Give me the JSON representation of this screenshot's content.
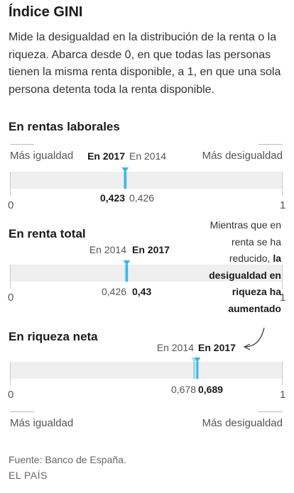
{
  "title": "Índice GINI",
  "intro": "Mide la desigualdad en la distribución de la renta o la riqueza. Abarca desde 0, en que todas las personas tienen la misma renta disponible, a 1, en que una sola persona detenta toda la renta disponible.",
  "scale": {
    "less_label": "Más igualdad",
    "more_label": "Más desigualdad"
  },
  "annotation": {
    "plain": "Mientras que en renta se ha reducido,",
    "bold": "la desigualdad en riqueza ha aumentado"
  },
  "source": "Fuente: Banco de España.",
  "brand": "EL PAÍS",
  "colors": {
    "marker": "#33b5e5",
    "band": "#efefef",
    "text": "#222222"
  },
  "chart_data": [
    {
      "type": "scatter",
      "title": "En rentas laborales",
      "xlim": [
        0,
        1
      ],
      "ticks": [
        "0",
        "1"
      ],
      "series": [
        {
          "name": "En 2014",
          "x": 0.426,
          "label": "0,426"
        },
        {
          "name": "En 2017",
          "x": 0.423,
          "label": "0,423"
        }
      ]
    },
    {
      "type": "scatter",
      "title": "En renta total",
      "xlim": [
        0,
        1
      ],
      "ticks": [
        "0",
        "1"
      ],
      "series": [
        {
          "name": "En 2014",
          "x": 0.426,
          "label": "0,426"
        },
        {
          "name": "En 2017",
          "x": 0.43,
          "label": "0,43"
        }
      ]
    },
    {
      "type": "scatter",
      "title": "En riqueza neta",
      "xlim": [
        0,
        1
      ],
      "ticks": [
        "0",
        "1"
      ],
      "series": [
        {
          "name": "En 2014",
          "x": 0.678,
          "label": "0,678"
        },
        {
          "name": "En 2017",
          "x": 0.689,
          "label": "0,689"
        }
      ]
    }
  ]
}
